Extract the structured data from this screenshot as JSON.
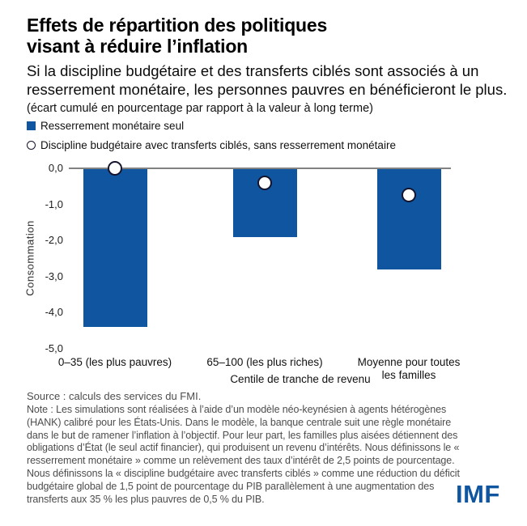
{
  "header": {
    "title_line1": "Effets de répartition des politiques",
    "title_line2": "visant à réduire l’inflation",
    "subtitle": "Si la discipline budgétaire et des transferts ciblés sont associés à un resserrement monétaire, les personnes pauvres en bénéficieront le plus.",
    "units_note": "(écart cumulé en pourcentage par rapport à la valeur à long terme)"
  },
  "legend": {
    "items": [
      {
        "label": "Resserrement monétaire seul",
        "marker": "filled-square"
      },
      {
        "label": "Discipline budgétaire avec transferts ciblés, sans resserrement monétaire",
        "marker": "open-circle"
      }
    ]
  },
  "chart_data": {
    "type": "bar",
    "categories": [
      "0–35  (les plus pauvres)",
      "65–100 (les plus riches)",
      "Moyenne pour toutes\nles familles"
    ],
    "series": [
      {
        "name": "Resserrement monétaire seul",
        "type": "bar",
        "values": [
          -4.4,
          -1.9,
          -2.8
        ]
      },
      {
        "name": "Discipline budgétaire avec transferts ciblés, sans resserrement monétaire",
        "type": "scatter",
        "marker": "open-circle",
        "values": [
          0.0,
          -0.4,
          -0.75
        ]
      }
    ],
    "ylabel": "Consommation",
    "xlabel": "Centile de tranche de revenu",
    "ylim": [
      -5.0,
      0.0
    ],
    "yticks": [
      {
        "value": 0,
        "label": "0,0"
      },
      {
        "value": -1,
        "label": "-1,0"
      },
      {
        "value": -2,
        "label": "-2,0"
      },
      {
        "value": -3,
        "label": "-3,0"
      },
      {
        "value": -4,
        "label": "-4,0"
      },
      {
        "value": -5,
        "label": "-5,0"
      }
    ],
    "grid": false,
    "legend_position": "top-left"
  },
  "footer": {
    "source": "Source : calculs des services du FMI.",
    "note": "Note : Les simulations sont réalisées à l’aide d’un modèle néo-keynésien à agents hétérogènes (HANK) calibré pour les États-Unis. Dans le modèle, la banque centrale suit une règle monétaire dans le but de ramener l’inflation à l’objectif. Pour leur part, les familles plus aisées détiennent des obligations d’État (le seul actif financier), qui produisent un revenu d’intérêts. Nous définissons le « resserrement monétaire » comme un relèvement des taux d’intérêt de 2,5 points de pourcentage. Nous définissons la « discipline budgétaire avec transferts ciblés » comme une réduction du déficit budgétaire global de 1,5 point de pourcentage du PIB parallèlement à une augmentation des transferts aux 35 % les plus pauvres de 0,5 % du PIB.",
    "logo": "IMF"
  },
  "colors": {
    "bar_blue": "#10559F",
    "marker_outline": "#14142E",
    "axis_gray": "#828282",
    "note_gray": "#4D4D4D",
    "logo_blue": "#10559F"
  }
}
